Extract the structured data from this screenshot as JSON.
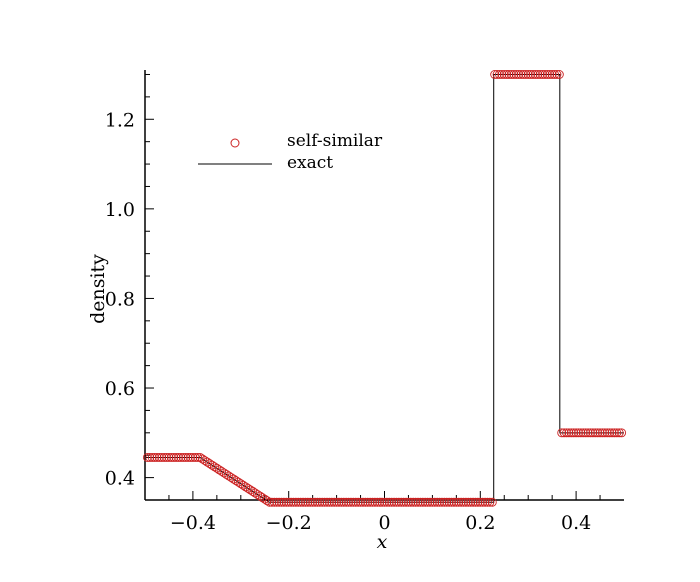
{
  "chart_data": {
    "type": "scatter",
    "title": "",
    "xlabel": "x",
    "ylabel": "density",
    "xlim": [
      -0.5,
      0.5
    ],
    "ylim": [
      0.35,
      1.31
    ],
    "xticks": [
      -0.4,
      -0.2,
      0,
      0.2,
      0.4
    ],
    "xtick_labels": [
      "−0.4",
      "−0.2",
      "0",
      "0.2",
      "0.4"
    ],
    "yticks": [
      0.4,
      0.6,
      0.8,
      1.0,
      1.2
    ],
    "ytick_labels": [
      "0.4",
      "0.6",
      "0.8",
      "1.0",
      "1.2"
    ],
    "grid": false,
    "legend_position": "upper-left",
    "series": [
      {
        "name": "self-similar",
        "style": "markers",
        "marker": "circle-open",
        "color": "#cc2222",
        "x_range": [
          -0.495,
          0.495
        ],
        "sample_step": 0.005,
        "profile": [
          [
            -0.495,
            0.445
          ],
          [
            -0.385,
            0.445
          ],
          [
            -0.24,
            0.345
          ],
          [
            0.225,
            0.345
          ],
          [
            0.225,
            1.3
          ],
          [
            0.365,
            1.3
          ],
          [
            0.365,
            0.5
          ],
          [
            0.495,
            0.5
          ]
        ]
      },
      {
        "name": "exact",
        "style": "line",
        "color": "#000000",
        "points": [
          [
            -0.5,
            0.445
          ],
          [
            -0.385,
            0.445
          ],
          [
            -0.24,
            0.345
          ],
          [
            0.228,
            0.345
          ],
          [
            0.228,
            1.3
          ],
          [
            0.366,
            1.3
          ],
          [
            0.366,
            0.5
          ],
          [
            0.5,
            0.5
          ]
        ]
      }
    ]
  }
}
